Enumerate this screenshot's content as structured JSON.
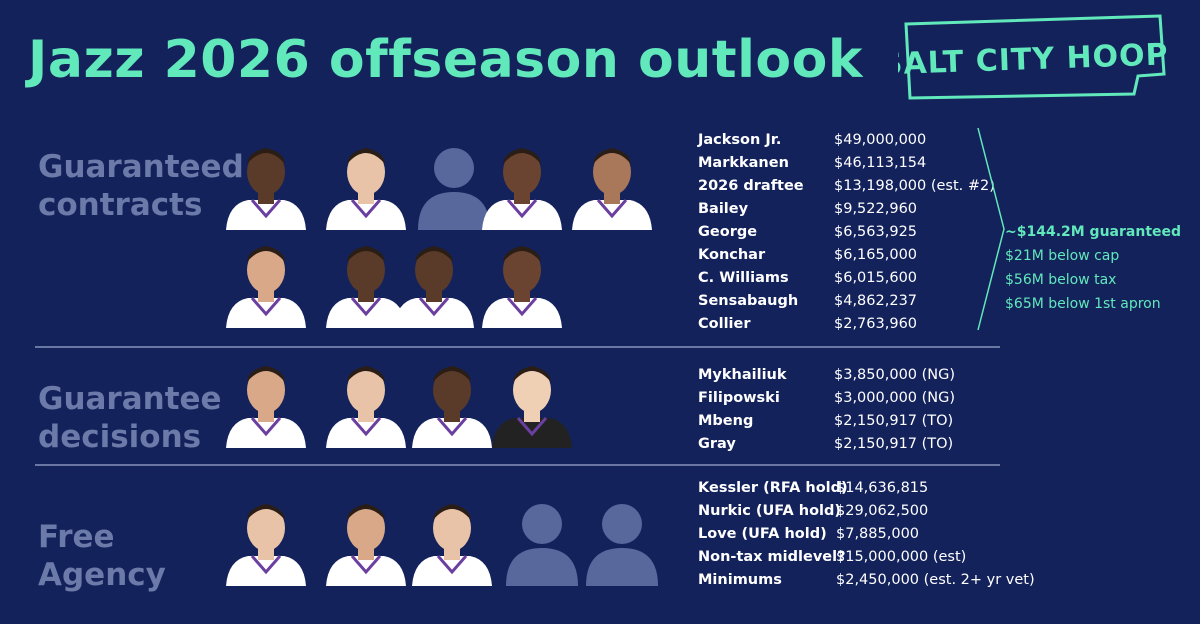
{
  "title": "Jazz 2026 offseason outlook",
  "logo": {
    "line1": "SALT CITY HOOPS"
  },
  "colors": {
    "background": "#14225c",
    "accent": "#61e8bb",
    "section_label": "#6b7aa8",
    "placeholder": "#58689c"
  },
  "sections": {
    "guaranteed": {
      "label_line1": "Guaranteed",
      "label_line2": "contracts",
      "rows": [
        {
          "name": "Jackson Jr.",
          "value": "$49,000,000"
        },
        {
          "name": "Markkanen",
          "value": "$46,113,154"
        },
        {
          "name": "2026 draftee",
          "value": "$13,198,000 (est. #2)"
        },
        {
          "name": "Bailey",
          "value": "$9,522,960"
        },
        {
          "name": "George",
          "value": "$6,563,925"
        },
        {
          "name": "Konchar",
          "value": "$6,165,000"
        },
        {
          "name": "C. Williams",
          "value": "$6,015,600"
        },
        {
          "name": "Sensabaugh",
          "value": "$4,862,237"
        },
        {
          "name": "Collier",
          "value": "$2,763,960"
        }
      ]
    },
    "decisions": {
      "label_line1": "Guarantee",
      "label_line2": "decisions",
      "rows": [
        {
          "name": "Mykhailiuk",
          "value": "$3,850,000 (NG)"
        },
        {
          "name": "Filipowski",
          "value": "$3,000,000 (NG)"
        },
        {
          "name": "Mbeng",
          "value": "$2,150,917 (TO)"
        },
        {
          "name": "Gray",
          "value": "$2,150,917 (TO)"
        }
      ]
    },
    "free_agency": {
      "label_line1": "Free",
      "label_line2": "Agency",
      "rows": [
        {
          "name": "Kessler (RFA hold)",
          "value": "$14,636,815"
        },
        {
          "name": "Nurkic (UFA hold)",
          "value": "$29,062,500"
        },
        {
          "name": "Love (UFA hold)",
          "value": "$7,885,000"
        },
        {
          "name": "Non-tax midlevel?",
          "value": "$15,000,000 (est)"
        },
        {
          "name": "Minimums",
          "value": "$2,450,000 (est. 2+ yr vet)"
        }
      ]
    }
  },
  "summary": {
    "guaranteed_total": "~$144.2M guaranteed",
    "below_cap": "$21M below cap",
    "below_tax": "$56M below tax",
    "below_apron": "$65M below 1st apron"
  }
}
